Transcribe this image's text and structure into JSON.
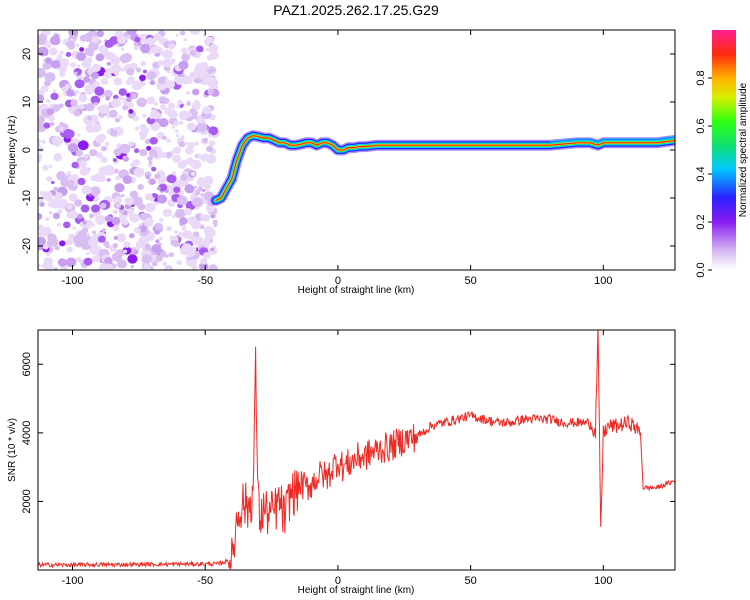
{
  "title": "PAZ1.2025.262.17.25.G29",
  "chart_data": [
    {
      "type": "heatmap",
      "xlabel": "Height of straight line (km)",
      "ylabel": "Frequency (Hz)",
      "xlim": [
        -113,
        127
      ],
      "ylim": [
        -25,
        25
      ],
      "x_ticks": [
        -100,
        -50,
        0,
        50,
        100
      ],
      "y_ticks": [
        -20,
        -10,
        0,
        10,
        20
      ],
      "colorbar": {
        "label": "Normalized spectral amplitude",
        "range": [
          0,
          1
        ],
        "ticks": [
          "0.0",
          "0.2",
          "0.4",
          "0.6",
          "0.8"
        ],
        "colormap": "rainbow (white-purple-blue-cyan-green-yellow-orange-red-pink)"
      },
      "noise_region": {
        "x_range": [
          -113,
          -46
        ],
        "freq_range": [
          -25,
          25
        ]
      },
      "ridge": {
        "x": [
          -46,
          -44,
          -42,
          -40,
          -38,
          -36,
          -34,
          -32,
          -30,
          -28,
          -26,
          -24,
          -22,
          -20,
          -18,
          -16,
          -14,
          -12,
          -10,
          -8,
          -6,
          -4,
          -2,
          0,
          2,
          4,
          6,
          8,
          10,
          15,
          20,
          30,
          40,
          50,
          60,
          70,
          80,
          90,
          95,
          98,
          100,
          105,
          110,
          115,
          120,
          127
        ],
        "freq": [
          -10.5,
          -10,
          -8,
          -6,
          -2,
          1,
          2.5,
          3,
          2.8,
          2.5,
          2.5,
          2,
          1.5,
          1.5,
          1,
          1,
          1.2,
          1.5,
          1.5,
          1,
          1.5,
          1.5,
          1,
          0,
          0,
          0.5,
          0.5,
          0.7,
          0.7,
          1,
          1,
          1,
          1,
          1,
          1,
          1,
          1,
          1.5,
          1.5,
          1,
          1.5,
          1.5,
          1.5,
          1.5,
          1.5,
          2
        ]
      }
    },
    {
      "type": "line",
      "xlabel": "Height of straight line (km)",
      "ylabel": "SNR (10 * v/v)",
      "xlim": [
        -113,
        127
      ],
      "ylim": [
        0,
        7000
      ],
      "x_ticks": [
        -100,
        -50,
        0,
        50,
        100
      ],
      "y_ticks": [
        2000,
        4000,
        6000
      ],
      "color": "#ee2a24",
      "series": [
        {
          "x": [
            -113,
            -100,
            -80,
            -60,
            -45,
            -40,
            -38,
            -36,
            -34,
            -32,
            -31,
            -30,
            -29,
            -28,
            -26,
            -24,
            -22,
            -20,
            -18,
            -16,
            -14,
            -12,
            -10,
            -8,
            -6,
            -4,
            -2,
            0,
            2,
            4,
            6,
            8,
            10,
            12,
            15,
            20,
            25,
            30,
            35,
            40,
            45,
            50,
            55,
            60,
            65,
            70,
            75,
            80,
            85,
            90,
            95,
            97,
            98,
            99,
            100,
            102,
            105,
            110,
            114,
            115,
            120,
            127
          ],
          "y": [
            150,
            150,
            160,
            170,
            180,
            300,
            1500,
            2000,
            1800,
            2200,
            5900,
            1900,
            1500,
            1800,
            1600,
            1700,
            2000,
            1500,
            2200,
            2300,
            2500,
            2400,
            2500,
            2700,
            2800,
            2700,
            3000,
            3200,
            3000,
            3100,
            3200,
            3300,
            3300,
            3400,
            3500,
            3600,
            3800,
            3900,
            4200,
            4300,
            4400,
            4500,
            4400,
            4300,
            4300,
            4400,
            4400,
            4400,
            4300,
            4300,
            4300,
            4000,
            7000,
            1100,
            4000,
            4200,
            4200,
            4300,
            4000,
            2400,
            2400,
            2600
          ]
        }
      ]
    }
  ]
}
